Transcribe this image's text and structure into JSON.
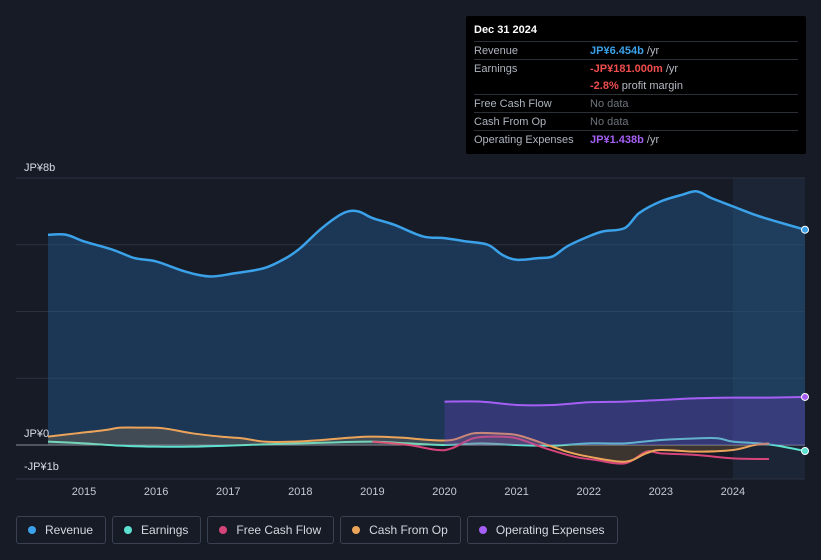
{
  "tooltip": {
    "date": "Dec 31 2024",
    "rows": [
      {
        "label": "Revenue",
        "value": "JP¥6.454b",
        "suffix": " /yr",
        "color": "#3ba1e8"
      },
      {
        "label": "Earnings",
        "value": "-JP¥181.000m",
        "suffix": " /yr",
        "color": "#ef4d4d"
      },
      {
        "label": "",
        "value": "-2.8%",
        "suffix": " profit margin",
        "color": "#ef4d4d"
      },
      {
        "label": "Free Cash Flow",
        "value": "No data",
        "suffix": "",
        "color": "#6e737c"
      },
      {
        "label": "Cash From Op",
        "value": "No data",
        "suffix": "",
        "color": "#6e737c"
      },
      {
        "label": "Operating Expenses",
        "value": "JP¥1.438b",
        "suffix": " /yr",
        "color": "#a55ff5"
      }
    ]
  },
  "legend": [
    {
      "name": "Revenue",
      "color": "#3ba1e8"
    },
    {
      "name": "Earnings",
      "color": "#5ce0cf"
    },
    {
      "name": "Free Cash Flow",
      "color": "#d6457a"
    },
    {
      "name": "Cash From Op",
      "color": "#eba45a"
    },
    {
      "name": "Operating Expenses",
      "color": "#a55ff5"
    }
  ],
  "chart_data": {
    "type": "area",
    "title": "",
    "xlabel": "",
    "ylabel": "",
    "y_tick_labels": [
      {
        "value": 8,
        "label": "JP¥8b"
      },
      {
        "value": 0,
        "label": "JP¥0"
      },
      {
        "value": -1,
        "label": "-JP¥1b"
      }
    ],
    "ylim": [
      -1,
      8
    ],
    "xlim": [
      2014.5,
      2025.0
    ],
    "x_ticks": [
      "2015",
      "2016",
      "2017",
      "2018",
      "2019",
      "2020",
      "2021",
      "2022",
      "2023",
      "2024"
    ],
    "highlight_start": 2024.0,
    "series": [
      {
        "name": "Revenue",
        "color": "#3ba1e8",
        "fill": true,
        "x": [
          2014.5,
          2014.75,
          2015.0,
          2015.4,
          2015.7,
          2016.0,
          2016.4,
          2016.75,
          2017.1,
          2017.5,
          2017.8,
          2018.0,
          2018.3,
          2018.6,
          2018.8,
          2019.0,
          2019.3,
          2019.7,
          2020.0,
          2020.3,
          2020.6,
          2020.8,
          2021.0,
          2021.3,
          2021.5,
          2021.7,
          2022.0,
          2022.2,
          2022.5,
          2022.7,
          2023.0,
          2023.3,
          2023.5,
          2023.7,
          2024.0,
          2024.3,
          2024.6,
          2025.0
        ],
        "y": [
          6.3,
          6.3,
          6.1,
          5.85,
          5.6,
          5.5,
          5.2,
          5.05,
          5.15,
          5.3,
          5.6,
          5.9,
          6.5,
          6.95,
          7.0,
          6.8,
          6.6,
          6.25,
          6.2,
          6.1,
          6.0,
          5.7,
          5.55,
          5.6,
          5.65,
          5.95,
          6.25,
          6.4,
          6.5,
          6.95,
          7.3,
          7.5,
          7.6,
          7.4,
          7.15,
          6.9,
          6.7,
          6.45
        ]
      },
      {
        "name": "Earnings",
        "color": "#5ce0cf",
        "fill": false,
        "x": [
          2014.5,
          2015.0,
          2015.5,
          2016.0,
          2016.5,
          2017.0,
          2017.5,
          2018.0,
          2018.5,
          2019.0,
          2019.5,
          2020.0,
          2020.5,
          2021.0,
          2021.5,
          2022.0,
          2022.5,
          2023.0,
          2023.5,
          2023.8,
          2024.0,
          2024.5,
          2025.0
        ],
        "y": [
          0.1,
          0.05,
          -0.02,
          -0.05,
          -0.05,
          -0.02,
          0.02,
          0.05,
          0.08,
          0.1,
          0.05,
          0.0,
          0.05,
          0.0,
          -0.02,
          0.05,
          0.05,
          0.15,
          0.2,
          0.2,
          0.1,
          0.02,
          -0.18
        ]
      },
      {
        "name": "Free Cash Flow",
        "color": "#d6457a",
        "fill": false,
        "x": [
          2019.0,
          2019.5,
          2019.9,
          2020.1,
          2020.4,
          2020.7,
          2021.0,
          2021.4,
          2021.8,
          2022.1,
          2022.5,
          2022.8,
          2023.0,
          2023.5,
          2024.0,
          2024.5
        ],
        "y": [
          0.1,
          0.0,
          -0.15,
          -0.1,
          0.2,
          0.25,
          0.2,
          -0.1,
          -0.35,
          -0.45,
          -0.55,
          -0.2,
          -0.25,
          -0.3,
          -0.4,
          -0.42
        ]
      },
      {
        "name": "Cash From Op",
        "color": "#eba45a",
        "fill": true,
        "x": [
          2014.5,
          2014.9,
          2015.3,
          2015.5,
          2015.8,
          2016.1,
          2016.5,
          2016.9,
          2017.2,
          2017.5,
          2017.9,
          2018.3,
          2018.7,
          2019.0,
          2019.4,
          2019.8,
          2020.1,
          2020.4,
          2020.7,
          2021.0,
          2021.3,
          2021.7,
          2022.0,
          2022.5,
          2022.8,
          2023.0,
          2023.5,
          2024.0,
          2024.3,
          2024.5
        ],
        "y": [
          0.25,
          0.35,
          0.45,
          0.52,
          0.52,
          0.5,
          0.35,
          0.25,
          0.2,
          0.1,
          0.1,
          0.15,
          0.22,
          0.25,
          0.22,
          0.15,
          0.15,
          0.35,
          0.35,
          0.3,
          0.1,
          -0.2,
          -0.35,
          -0.5,
          -0.25,
          -0.15,
          -0.2,
          -0.15,
          0.0,
          0.05
        ]
      },
      {
        "name": "Operating Expenses",
        "color": "#a55ff5",
        "fill": true,
        "x": [
          2020.0,
          2020.5,
          2021.0,
          2021.5,
          2022.0,
          2022.5,
          2023.0,
          2023.5,
          2024.0,
          2024.5,
          2025.0
        ],
        "y": [
          1.3,
          1.3,
          1.2,
          1.2,
          1.28,
          1.3,
          1.35,
          1.4,
          1.42,
          1.42,
          1.44
        ]
      }
    ]
  }
}
